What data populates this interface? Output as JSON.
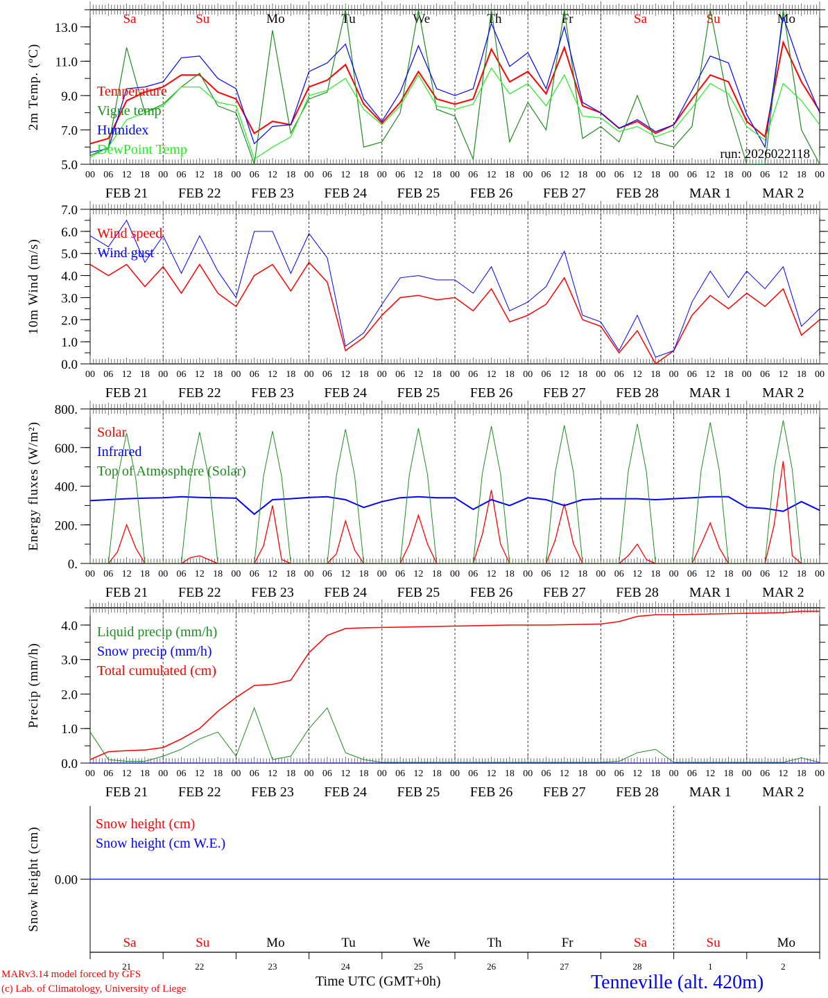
{
  "colors": {
    "red": "#ff0000",
    "green": "#1e8c1e",
    "blue": "#0000ff",
    "lightgreen": "#22ee22",
    "black": "#000000"
  },
  "hour_labels": [
    "00",
    "06",
    "12",
    "18"
  ],
  "dates": [
    "FEB  21",
    "FEB  22",
    "FEB  23",
    "FEB  24",
    "FEB  25",
    "FEB  26",
    "FEB  27",
    "FEB  28",
    "MAR   1",
    "MAR   2"
  ],
  "day_names": [
    {
      "label": "Sa",
      "weekend": true
    },
    {
      "label": "Su",
      "weekend": true
    },
    {
      "label": "Mo",
      "weekend": false
    },
    {
      "label": "Tu",
      "weekend": false
    },
    {
      "label": "We",
      "weekend": false
    },
    {
      "label": "Th",
      "weekend": false
    },
    {
      "label": "Fr",
      "weekend": false
    },
    {
      "label": "Sa",
      "weekend": true
    },
    {
      "label": "Su",
      "weekend": true
    },
    {
      "label": "Mo",
      "weekend": false
    }
  ],
  "day_numbers": [
    "21",
    "22",
    "23",
    "24",
    "25",
    "26",
    "27",
    "28",
    "1",
    "2"
  ],
  "footer": {
    "model": "MARv3.14 model forced by GFS",
    "credit": "(c) Lab. of Climatology, University of Liege",
    "xlabel": "Time UTC (GMT+0h)",
    "station": "Tenneville (alt. 420m)"
  },
  "chart_data": [
    {
      "type": "line",
      "id": "temp",
      "ylabel": "2m Temp. (ºC)",
      "ylim": [
        5,
        14
      ],
      "yticks": [
        5,
        7,
        9,
        11,
        13
      ],
      "ytick_labels": [
        "5.0",
        "7.0",
        "9.0",
        "11.0",
        "13.0"
      ],
      "minor_step": 1,
      "annotation": "run: 2026022118",
      "x_step_hours": 6,
      "series": [
        {
          "name": "Temperature",
          "color": "#ff0000",
          "width": 2,
          "values": [
            6.2,
            6.5,
            8.7,
            9.2,
            9.5,
            10.2,
            10.2,
            9.2,
            8.8,
            6.8,
            7.5,
            7.3,
            9.5,
            9.9,
            10.8,
            8.5,
            7.4,
            8.6,
            10.4,
            8.8,
            8.5,
            8.8,
            11.7,
            9.8,
            10.4,
            9.1,
            11.8,
            8.4,
            8.0,
            7.1,
            7.5,
            6.8,
            7.3,
            8.8,
            10.2,
            9.8,
            7.5,
            6.6,
            12.1,
            9.8,
            8.1
          ]
        },
        {
          "name": "Vigne temp",
          "color": "#1e8c1e",
          "width": 1.2,
          "values": [
            5.5,
            6.0,
            11.8,
            8.0,
            8.5,
            9.5,
            10.3,
            8.4,
            8.0,
            5.0,
            12.8,
            6.8,
            8.8,
            9.2,
            14.0,
            6.0,
            6.3,
            8.0,
            14.0,
            8.2,
            7.8,
            5.3,
            14.0,
            6.3,
            8.6,
            7.0,
            14.0,
            6.5,
            7.2,
            6.3,
            9.0,
            6.3,
            6.0,
            7.2,
            14.0,
            8.5,
            5.0,
            5.0,
            14.0,
            7.0,
            5.0
          ]
        },
        {
          "name": "Humidex",
          "color": "#0000ff",
          "width": 1.2,
          "values": [
            5.7,
            5.9,
            9.4,
            9.5,
            9.8,
            11.2,
            11.3,
            10.0,
            9.4,
            6.2,
            7.2,
            7.3,
            10.4,
            10.9,
            12.0,
            8.8,
            7.5,
            9.2,
            11.9,
            9.4,
            9.0,
            9.4,
            13.2,
            10.7,
            11.5,
            9.4,
            13.0,
            8.6,
            8.0,
            7.1,
            7.6,
            6.9,
            7.3,
            9.3,
            11.3,
            10.9,
            7.9,
            6.0,
            13.6,
            10.5,
            8.0
          ]
        },
        {
          "name": "DewPoint Temp",
          "color": "#22ee22",
          "width": 1.2,
          "values": [
            5.4,
            6.0,
            7.6,
            8.0,
            8.4,
            9.5,
            9.5,
            8.6,
            8.4,
            5.3,
            6.0,
            6.6,
            9.0,
            9.3,
            10.0,
            8.2,
            7.3,
            8.4,
            10.2,
            8.4,
            8.2,
            8.5,
            10.6,
            9.1,
            9.7,
            8.4,
            10.2,
            7.8,
            7.7,
            6.9,
            7.2,
            6.6,
            7.0,
            8.3,
            9.7,
            9.1,
            7.2,
            6.4,
            9.7,
            8.7,
            7.3
          ]
        }
      ]
    },
    {
      "type": "line",
      "id": "wind",
      "ylabel": "10m Wind (m/s)",
      "ylim": [
        0,
        7
      ],
      "yticks": [
        0,
        1,
        2,
        3,
        4,
        5,
        6,
        7
      ],
      "ytick_labels": [
        "0.0",
        "1.0",
        "2.0",
        "3.0",
        "4.0",
        "5.0",
        "6.0",
        "7.0"
      ],
      "minor_step": 0.5,
      "reference_line": 5,
      "x_step_hours": 6,
      "series": [
        {
          "name": "Wind speed",
          "color": "#ff0000",
          "width": 1.5,
          "values": [
            4.5,
            4.0,
            4.5,
            3.5,
            4.4,
            3.2,
            4.5,
            3.2,
            2.6,
            4.0,
            4.5,
            3.3,
            4.6,
            3.7,
            0.6,
            1.2,
            2.2,
            3.0,
            3.1,
            2.9,
            3.0,
            2.4,
            3.4,
            1.9,
            2.2,
            2.7,
            3.9,
            2.0,
            1.7,
            0.5,
            1.5,
            0.0,
            0.6,
            2.2,
            3.1,
            2.5,
            3.2,
            2.6,
            3.4,
            1.3,
            2.0
          ]
        },
        {
          "name": "Wind gust",
          "color": "#0000ff",
          "width": 1,
          "values": [
            5.8,
            5.3,
            6.5,
            4.6,
            5.8,
            4.1,
            5.8,
            4.2,
            3.0,
            6.0,
            6.0,
            4.1,
            5.9,
            4.8,
            0.8,
            1.4,
            2.7,
            3.9,
            4.0,
            3.8,
            3.8,
            3.2,
            4.4,
            2.4,
            2.8,
            3.5,
            5.1,
            2.2,
            1.9,
            0.6,
            2.2,
            0.3,
            0.6,
            2.8,
            4.2,
            3.0,
            4.2,
            3.4,
            4.4,
            1.7,
            2.5
          ]
        }
      ]
    },
    {
      "type": "line",
      "id": "flux",
      "ylabel": "Energy fluxes (W/m²)",
      "ylim": [
        0,
        800
      ],
      "yticks": [
        0,
        200,
        400,
        600,
        800
      ],
      "ytick_labels": [
        "0.",
        "200.",
        "400.",
        "600.",
        "800."
      ],
      "minor_step": 100,
      "x_step_hours": 3,
      "series": [
        {
          "name": "Solar",
          "color": "#ff0000",
          "width": 1.3,
          "values": [
            0,
            0,
            0,
            60,
            200,
            80,
            0,
            0,
            0,
            0,
            0,
            30,
            40,
            20,
            0,
            0,
            0,
            0,
            0,
            90,
            300,
            20,
            0,
            0,
            0,
            0,
            0,
            50,
            220,
            70,
            0,
            0,
            0,
            0,
            0,
            100,
            250,
            100,
            0,
            0,
            0,
            0,
            0,
            150,
            380,
            100,
            0,
            0,
            0,
            0,
            0,
            120,
            310,
            100,
            0,
            0,
            0,
            0,
            0,
            40,
            100,
            20,
            0,
            0,
            0,
            0,
            0,
            100,
            210,
            80,
            0,
            0,
            0,
            0,
            0,
            200,
            530,
            40,
            0,
            0,
            0
          ]
        },
        {
          "name": "Infrared",
          "color": "#0000ff",
          "width": 2,
          "step": 2,
          "values": [
            325,
            330,
            335,
            338,
            340,
            345,
            342,
            340,
            338,
            255,
            330,
            335,
            342,
            345,
            330,
            290,
            320,
            340,
            345,
            340,
            340,
            280,
            330,
            300,
            340,
            330,
            300,
            330,
            335,
            335,
            335,
            330,
            335,
            340,
            345,
            345,
            290,
            285,
            270,
            320,
            275
          ]
        },
        {
          "name": "Top of Atmosphere (Solar)",
          "color": "#1e8c1e",
          "width": 1,
          "values": [
            0,
            0,
            0,
            440,
            675,
            440,
            0,
            0,
            0,
            0,
            0,
            445,
            680,
            445,
            0,
            0,
            0,
            0,
            0,
            450,
            685,
            450,
            0,
            0,
            0,
            0,
            0,
            455,
            695,
            455,
            0,
            0,
            0,
            0,
            0,
            460,
            700,
            460,
            0,
            0,
            0,
            0,
            0,
            465,
            710,
            465,
            0,
            0,
            0,
            0,
            0,
            470,
            715,
            470,
            0,
            0,
            0,
            0,
            0,
            475,
            722,
            475,
            0,
            0,
            0,
            0,
            0,
            480,
            730,
            480,
            0,
            0,
            0,
            0,
            0,
            485,
            740,
            485,
            0,
            0,
            0
          ]
        }
      ]
    },
    {
      "type": "line",
      "id": "precip",
      "ylabel": "Precip (mm/h)",
      "ylim": [
        0,
        4.5
      ],
      "yticks": [
        0,
        1,
        2,
        3,
        4
      ],
      "ytick_labels": [
        "0.0",
        "1.0",
        "2.0",
        "3.0",
        "4.0"
      ],
      "minor_step": 0.5,
      "x_step_hours": 6,
      "series": [
        {
          "name": "Liquid precip (mm/h)",
          "color": "#1e8c1e",
          "width": 1,
          "values": [
            0.9,
            0.1,
            0.05,
            0.05,
            0.2,
            0.4,
            0.7,
            0.9,
            0.2,
            1.6,
            0.1,
            0.2,
            1.0,
            1.6,
            0.3,
            0.1,
            0.02,
            0.02,
            0.02,
            0.02,
            0.02,
            0.02,
            0.02,
            0.02,
            0.02,
            0.02,
            0.02,
            0.02,
            0.02,
            0.05,
            0.3,
            0.4,
            0.02,
            0.02,
            0.02,
            0.02,
            0.02,
            0.02,
            0.02,
            0.15,
            0.02
          ]
        },
        {
          "name": "Snow precip (mm/h)",
          "color": "#0000ff",
          "width": 1,
          "values": [
            0,
            0,
            0,
            0,
            0,
            0,
            0,
            0,
            0,
            0,
            0,
            0,
            0,
            0,
            0,
            0,
            0,
            0,
            0,
            0,
            0,
            0,
            0,
            0,
            0,
            0,
            0,
            0,
            0,
            0,
            0,
            0,
            0,
            0,
            0,
            0,
            0,
            0,
            0,
            0,
            0
          ]
        },
        {
          "name": "Total cumulated (cm)",
          "color": "#ff0000",
          "width": 1.5,
          "values": [
            0.1,
            0.33,
            0.36,
            0.38,
            0.45,
            0.7,
            1.0,
            1.5,
            1.9,
            2.25,
            2.28,
            2.4,
            3.2,
            3.7,
            3.9,
            3.92,
            3.93,
            3.94,
            3.95,
            3.96,
            3.97,
            3.98,
            3.99,
            4.0,
            4.0,
            4.0,
            4.01,
            4.02,
            4.03,
            4.1,
            4.25,
            4.3,
            4.3,
            4.31,
            4.32,
            4.33,
            4.34,
            4.35,
            4.36,
            4.4,
            4.4
          ]
        }
      ]
    },
    {
      "type": "line",
      "id": "snow",
      "ylabel": "Snow height (cm)",
      "ylim": [
        -1,
        1
      ],
      "yticks": [
        0
      ],
      "ytick_labels": [
        "0.00"
      ],
      "minor_step": null,
      "x_step_hours": 6,
      "series": [
        {
          "name": "Snow height (cm)",
          "color": "#ff0000",
          "width": 1.2,
          "values": [
            0,
            0,
            0,
            0,
            0,
            0,
            0,
            0,
            0,
            0,
            0,
            0,
            0,
            0,
            0,
            0,
            0,
            0,
            0,
            0,
            0,
            0,
            0,
            0,
            0,
            0,
            0,
            0,
            0,
            0,
            0,
            0,
            0,
            0,
            0,
            0,
            0,
            0,
            0,
            0,
            0
          ]
        },
        {
          "name": "Snow height (cm W.E.)",
          "color": "#0000ff",
          "width": 1,
          "values": [
            0,
            0,
            0,
            0,
            0,
            0,
            0,
            0,
            0,
            0,
            0,
            0,
            0,
            0,
            0,
            0,
            0,
            0,
            0,
            0,
            0,
            0,
            0,
            0,
            0,
            0,
            0,
            0,
            0,
            0,
            0,
            0,
            0,
            0,
            0,
            0,
            0,
            0,
            0,
            0,
            0
          ]
        }
      ]
    }
  ]
}
